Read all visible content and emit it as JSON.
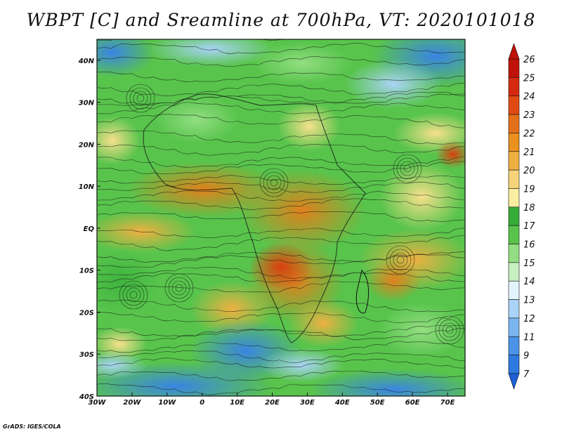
{
  "title": "WBPT [C] and Sreamline at 700hPa, VT: 2020101018",
  "credit": "GrADS: IGES/COLA",
  "map": {
    "lon_ticks": [
      "30W",
      "20W",
      "10W",
      "0",
      "10E",
      "20E",
      "30E",
      "40E",
      "50E",
      "60E",
      "70E"
    ],
    "lat_ticks": [
      "40N",
      "30N",
      "20N",
      "10N",
      "EQ",
      "10S",
      "20S",
      "30S",
      "40S"
    ],
    "lon_range": [
      -30,
      75
    ],
    "lat_range": [
      -40,
      45
    ]
  },
  "colorbar": {
    "labels": [
      "7",
      "9",
      "11",
      "12",
      "13",
      "14",
      "15",
      "16",
      "17",
      "18",
      "19",
      "20",
      "21",
      "22",
      "23",
      "24",
      "25",
      "26"
    ],
    "colors": [
      "#1f5fd6",
      "#2e7ae0",
      "#4a93e8",
      "#7bb5f0",
      "#a9d3f7",
      "#e2f4fb",
      "#c7f0c0",
      "#93de82",
      "#58c44c",
      "#37ad38",
      "#fbeea0",
      "#f6d278",
      "#efb042",
      "#e9901f",
      "#e5701a",
      "#e24a14",
      "#d62a10",
      "#c01208"
    ]
  }
}
